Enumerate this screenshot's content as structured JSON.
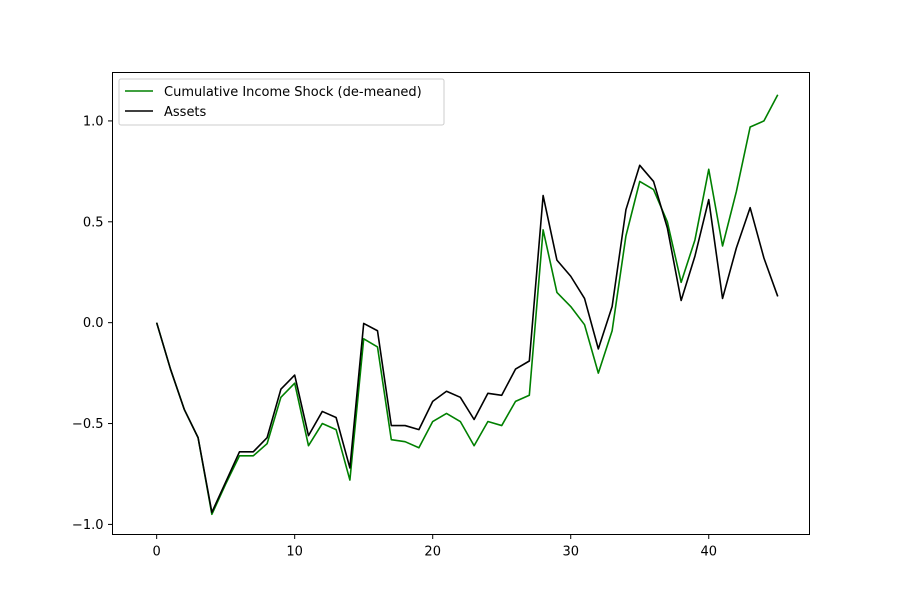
{
  "chart_data": {
    "type": "line",
    "title": "",
    "xlabel": "",
    "ylabel": "",
    "xlim": [
      -3.2,
      47.3
    ],
    "ylim": [
      -1.05,
      1.24
    ],
    "x_ticks": [
      0,
      10,
      20,
      30,
      40
    ],
    "y_ticks": [
      -1.0,
      -0.5,
      0.0,
      0.5,
      1.0
    ],
    "x_tick_labels": [
      "0",
      "10",
      "20",
      "30",
      "40"
    ],
    "y_tick_labels": [
      "−1.0",
      "−0.5",
      "0.0",
      "0.5",
      "1.0"
    ],
    "grid": false,
    "legend_position": "top-left",
    "x": [
      0,
      1,
      2,
      3,
      4,
      5,
      6,
      7,
      8,
      9,
      10,
      11,
      12,
      13,
      14,
      15,
      16,
      17,
      18,
      19,
      20,
      21,
      22,
      23,
      24,
      25,
      26,
      27,
      28,
      29,
      30,
      31,
      32,
      33,
      34,
      35,
      36,
      37,
      38,
      39,
      40,
      41,
      42,
      43,
      44,
      45
    ],
    "series": [
      {
        "name": "Cumulative Income Shock (de-meaned)",
        "color": "#008000",
        "values": [
          0.0,
          -0.23,
          -0.43,
          -0.57,
          -0.95,
          -0.8,
          -0.66,
          -0.66,
          -0.6,
          -0.37,
          -0.3,
          -0.61,
          -0.5,
          -0.53,
          -0.78,
          -0.08,
          -0.12,
          -0.58,
          -0.59,
          -0.62,
          -0.49,
          -0.45,
          -0.49,
          -0.61,
          -0.49,
          -0.51,
          -0.39,
          -0.36,
          0.46,
          0.15,
          0.08,
          -0.01,
          -0.25,
          -0.04,
          0.43,
          0.7,
          0.66,
          0.5,
          0.2,
          0.41,
          0.76,
          0.38,
          0.65,
          0.97,
          1.0,
          1.13
        ]
      },
      {
        "name": "Assets",
        "color": "#000000",
        "values": [
          0.0,
          -0.23,
          -0.43,
          -0.57,
          -0.94,
          -0.79,
          -0.64,
          -0.64,
          -0.57,
          -0.33,
          -0.26,
          -0.56,
          -0.44,
          -0.47,
          -0.72,
          -0.004,
          -0.04,
          -0.51,
          -0.51,
          -0.53,
          -0.39,
          -0.34,
          -0.37,
          -0.48,
          -0.35,
          -0.36,
          -0.23,
          -0.19,
          0.63,
          0.31,
          0.23,
          0.12,
          -0.13,
          0.08,
          0.56,
          0.78,
          0.7,
          0.47,
          0.11,
          0.33,
          0.61,
          0.12,
          0.37,
          0.57,
          0.32,
          0.13
        ]
      }
    ]
  }
}
